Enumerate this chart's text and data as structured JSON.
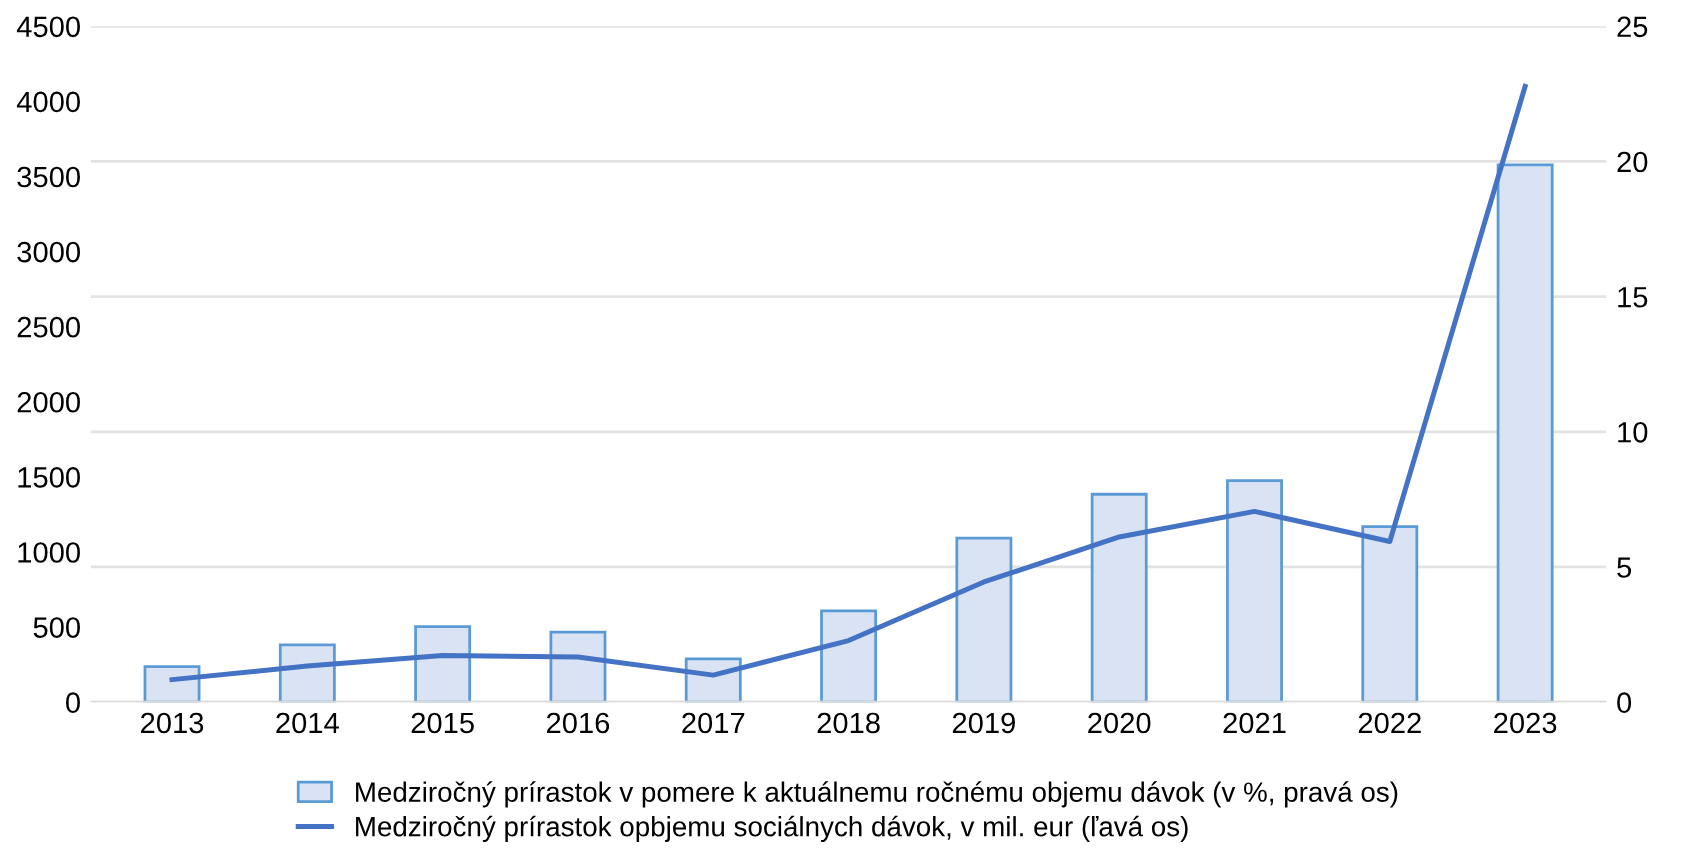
{
  "chart_data": {
    "type": "bar",
    "categories": [
      "2013",
      "2014",
      "2015",
      "2016",
      "2017",
      "2018",
      "2019",
      "2020",
      "2021",
      "2022",
      "2023"
    ],
    "series": [
      {
        "name": "Medziročný prírastok v pomere k aktuálnemu ročnému objemu dávok (v %, pravá os)",
        "axis": "y2",
        "color": "#dae3f3",
        "values": [
          1.31,
          2.12,
          2.79,
          2.59,
          1.6,
          3.38,
          6.07,
          7.69,
          8.19,
          6.49,
          19.87
        ]
      },
      {
        "name": "Medziročný prírastok opbjemu sociálnych dávok, v mil. eur (ľavá os)",
        "type": "line",
        "color": "#4472c4",
        "values": [
          150,
          240,
          310,
          300,
          180,
          410,
          800,
          1100,
          1270,
          1070,
          4100
        ]
      }
    ],
    "ylim": [
      0,
      4500
    ],
    "yticks": [
      0,
      500,
      1000,
      1500,
      2000,
      2500,
      3000,
      3500,
      4000,
      4500
    ],
    "y2lim": [
      0,
      25
    ],
    "y2ticks": [
      0,
      5,
      10,
      15,
      20,
      25
    ],
    "grid": "y",
    "legend": "bottom",
    "marker": "none",
    "line_style": "solid"
  }
}
